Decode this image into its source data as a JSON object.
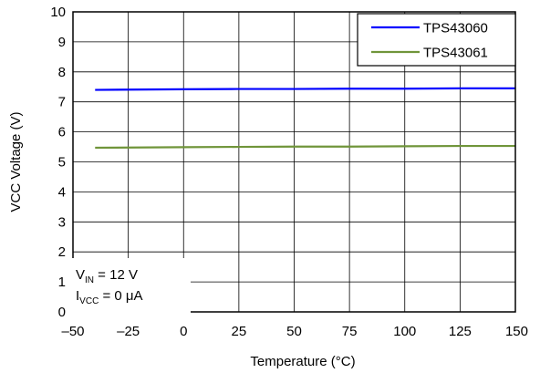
{
  "chart_data": {
    "type": "line",
    "xlabel": "Temperature (°C)",
    "ylabel": "VCC Voltage (V)",
    "xlim": [
      -50,
      150
    ],
    "ylim": [
      0,
      10
    ],
    "x_ticks": [
      -50,
      -25,
      0,
      25,
      50,
      75,
      100,
      125,
      150
    ],
    "x_tick_labels": [
      "–50",
      "–25",
      "0",
      "25",
      "50",
      "75",
      "100",
      "125",
      "150"
    ],
    "y_ticks": [
      0,
      1,
      2,
      3,
      4,
      5,
      6,
      7,
      8,
      9,
      10
    ],
    "y_tick_labels": [
      "0",
      "1",
      "2",
      "3",
      "4",
      "5",
      "6",
      "7",
      "8",
      "9",
      "10"
    ],
    "grid": true,
    "legend_position": "top-right",
    "series": [
      {
        "name": "TPS43060",
        "color": "#0000ff",
        "x": [
          -40,
          0,
          25,
          50,
          75,
          100,
          125,
          150
        ],
        "y": [
          7.4,
          7.42,
          7.43,
          7.43,
          7.44,
          7.44,
          7.45,
          7.45
        ]
      },
      {
        "name": "TPS43061",
        "color": "#70953a",
        "x": [
          -40,
          0,
          25,
          50,
          75,
          100,
          125,
          150
        ],
        "y": [
          5.47,
          5.49,
          5.5,
          5.51,
          5.51,
          5.52,
          5.53,
          5.53
        ]
      }
    ],
    "annotation": {
      "line1": {
        "main": "V",
        "sub": "IN",
        "rest": " = 12 V"
      },
      "line2": {
        "main": "I",
        "sub": "VCC",
        "rest": " = 0 μA"
      }
    }
  }
}
